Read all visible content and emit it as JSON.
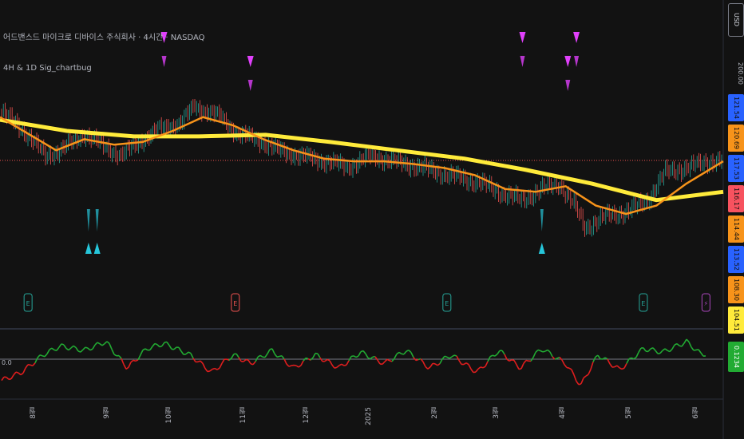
{
  "header": {
    "symbol_line": "어드밴스드 마이크로 디바이스 주식회사 · 4시간 · NASDAQ",
    "indicator_line": "4H & 1D Sig_chartbug"
  },
  "price_scale": {
    "currency": "USD",
    "top_value": "200.00",
    "labels": [
      {
        "text": "121.54",
        "value": 121.54,
        "color": "#2962ff"
      },
      {
        "text": "120.69",
        "value": 120.69,
        "color": "#f7931a"
      },
      {
        "text": "117.53",
        "value": 117.53,
        "color": "#2962ff"
      },
      {
        "text": "116.17",
        "value": 116.17,
        "color": "#f7525f"
      },
      {
        "text": "114.44",
        "value": 114.44,
        "color": "#f7931a"
      },
      {
        "text": "113.52",
        "value": 113.52,
        "color": "#2962ff"
      },
      {
        "text": "108.30",
        "value": 108.3,
        "color": "#f7931a"
      },
      {
        "text": "104.51",
        "value": 104.51,
        "color": "#ffeb3b"
      }
    ],
    "osc_label": {
      "text": "0.1234",
      "color": "#22ab33"
    },
    "osc_zero_label": "0.0"
  },
  "x_axis": {
    "ticks": [
      "8월",
      "9월",
      "10월",
      "11월",
      "12월",
      "2025",
      "2월",
      "3월",
      "4월",
      "5월",
      "6월"
    ]
  },
  "colors": {
    "background": "#121212",
    "candle_up": "#26a69a",
    "candle_down": "#ef5350",
    "fast_ma": "#f7931a",
    "slow_ma": "#ffeb3b",
    "sell_marker": "#e040fb",
    "buy_marker": "#26c6da",
    "osc_up": "#22ab33",
    "osc_down": "#e01e1e"
  },
  "chart_data": {
    "type": "line",
    "title": "",
    "x_range": [
      "2024-07-12",
      "2025-06-12"
    ],
    "ylim": [
      99,
      129
    ],
    "current_price": 116.17,
    "series": [
      {
        "key": "price",
        "points": [
          [
            "2024-07-12",
            125
          ],
          [
            "2024-07-22",
            122
          ],
          [
            "2024-08-02",
            117
          ],
          [
            "2024-08-09",
            118
          ],
          [
            "2024-08-20",
            121
          ],
          [
            "2024-08-28",
            119
          ],
          [
            "2024-09-06",
            117
          ],
          [
            "2024-09-16",
            120
          ],
          [
            "2024-09-25",
            122
          ],
          [
            "2024-10-04",
            123
          ],
          [
            "2024-10-10",
            126
          ],
          [
            "2024-10-22",
            124
          ],
          [
            "2024-10-30",
            121
          ],
          [
            "2024-11-08",
            120
          ],
          [
            "2024-11-18",
            118
          ],
          [
            "2024-11-28",
            117
          ],
          [
            "2024-12-10",
            116
          ],
          [
            "2024-12-20",
            115
          ],
          [
            "2024-12-31",
            117
          ],
          [
            "2025-01-10",
            116
          ],
          [
            "2025-01-22",
            115
          ],
          [
            "2025-01-31",
            114
          ],
          [
            "2025-02-10",
            113
          ],
          [
            "2025-02-20",
            112
          ],
          [
            "2025-03-03",
            110
          ],
          [
            "2025-03-11",
            109
          ],
          [
            "2025-03-20",
            111
          ],
          [
            "2025-03-28",
            112
          ],
          [
            "2025-04-04",
            108
          ],
          [
            "2025-04-09",
            104
          ],
          [
            "2025-04-18",
            106
          ],
          [
            "2025-04-29",
            107
          ],
          [
            "2025-05-08",
            109
          ],
          [
            "2025-05-16",
            114
          ],
          [
            "2025-05-28",
            115
          ],
          [
            "2025-06-05",
            116
          ],
          [
            "2025-06-12",
            116.2
          ]
        ]
      },
      {
        "key": "fast_ma",
        "points": [
          [
            "2024-07-12",
            124
          ],
          [
            "2024-07-25",
            121
          ],
          [
            "2024-08-07",
            118
          ],
          [
            "2024-08-20",
            120
          ],
          [
            "2024-09-03",
            119
          ],
          [
            "2024-09-16",
            119.5
          ],
          [
            "2024-09-30",
            121.5
          ],
          [
            "2024-10-14",
            124
          ],
          [
            "2024-10-28",
            122.5
          ],
          [
            "2024-11-11",
            120
          ],
          [
            "2024-11-25",
            118
          ],
          [
            "2024-12-09",
            116.5
          ],
          [
            "2024-12-23",
            116
          ],
          [
            "2025-01-06",
            116
          ],
          [
            "2025-01-20",
            115.5
          ],
          [
            "2025-02-03",
            114.8
          ],
          [
            "2025-02-17",
            113.5
          ],
          [
            "2025-03-03",
            111
          ],
          [
            "2025-03-17",
            110.5
          ],
          [
            "2025-03-31",
            111.5
          ],
          [
            "2025-04-14",
            108
          ],
          [
            "2025-04-28",
            106.5
          ],
          [
            "2025-05-12",
            108
          ],
          [
            "2025-05-26",
            112
          ],
          [
            "2025-06-12",
            116
          ]
        ]
      },
      {
        "key": "slow_ma",
        "points": [
          [
            "2024-07-12",
            123.5
          ],
          [
            "2024-08-12",
            121.5
          ],
          [
            "2024-09-12",
            120.5
          ],
          [
            "2024-10-12",
            120.5
          ],
          [
            "2024-11-12",
            120.8
          ],
          [
            "2024-12-12",
            119.5
          ],
          [
            "2025-01-12",
            118
          ],
          [
            "2025-02-12",
            116.5
          ],
          [
            "2025-03-12",
            114.5
          ],
          [
            "2025-04-12",
            112
          ],
          [
            "2025-05-12",
            109
          ],
          [
            "2025-06-12",
            110.5
          ]
        ]
      },
      {
        "key": "oscillator",
        "points": [
          [
            "2024-07-12",
            -0.25
          ],
          [
            "2024-07-22",
            -0.15
          ],
          [
            "2024-08-01",
            0.05
          ],
          [
            "2024-08-09",
            0.15
          ],
          [
            "2024-08-20",
            0.1
          ],
          [
            "2024-08-30",
            0.2
          ],
          [
            "2024-09-09",
            -0.1
          ],
          [
            "2024-09-18",
            0.12
          ],
          [
            "2024-09-26",
            0.18
          ],
          [
            "2024-10-08",
            0.05
          ],
          [
            "2024-10-18",
            -0.15
          ],
          [
            "2024-10-28",
            0.05
          ],
          [
            "2024-11-05",
            -0.05
          ],
          [
            "2024-11-15",
            0.1
          ],
          [
            "2024-11-25",
            -0.1
          ],
          [
            "2024-12-05",
            0.05
          ],
          [
            "2024-12-16",
            -0.1
          ],
          [
            "2024-12-26",
            0.08
          ],
          [
            "2025-01-06",
            -0.05
          ],
          [
            "2025-01-16",
            0.1
          ],
          [
            "2025-01-27",
            -0.1
          ],
          [
            "2025-02-06",
            0.05
          ],
          [
            "2025-02-18",
            -0.15
          ],
          [
            "2025-02-28",
            0.1
          ],
          [
            "2025-03-10",
            -0.1
          ],
          [
            "2025-03-20",
            0.12
          ],
          [
            "2025-03-31",
            -0.05
          ],
          [
            "2025-04-07",
            -0.3
          ],
          [
            "2025-04-15",
            0.05
          ],
          [
            "2025-04-25",
            -0.12
          ],
          [
            "2025-05-06",
            0.12
          ],
          [
            "2025-05-15",
            0.08
          ],
          [
            "2025-05-26",
            0.2
          ],
          [
            "2025-06-02",
            0.05
          ],
          [
            "2025-06-12",
            0.12
          ]
        ]
      }
    ],
    "signals": {
      "sell": [
        "2024-09-26",
        "2024-11-05",
        "2025-03-11",
        "2025-04-01",
        "2025-04-05"
      ],
      "buy": [
        "2024-08-22",
        "2024-08-26",
        "2025-03-20"
      ]
    },
    "events": [
      {
        "date": "2024-07-25",
        "letter": "E",
        "color": "#26a69a"
      },
      {
        "date": "2024-10-29",
        "letter": "E",
        "color": "#ef5350"
      },
      {
        "date": "2025-02-04",
        "letter": "E",
        "color": "#26a69a"
      },
      {
        "date": "2025-05-06",
        "letter": "E",
        "color": "#26a69a"
      },
      {
        "date": "2025-06-04",
        "letter": "⚡",
        "color": "#ab47bc"
      }
    ]
  }
}
